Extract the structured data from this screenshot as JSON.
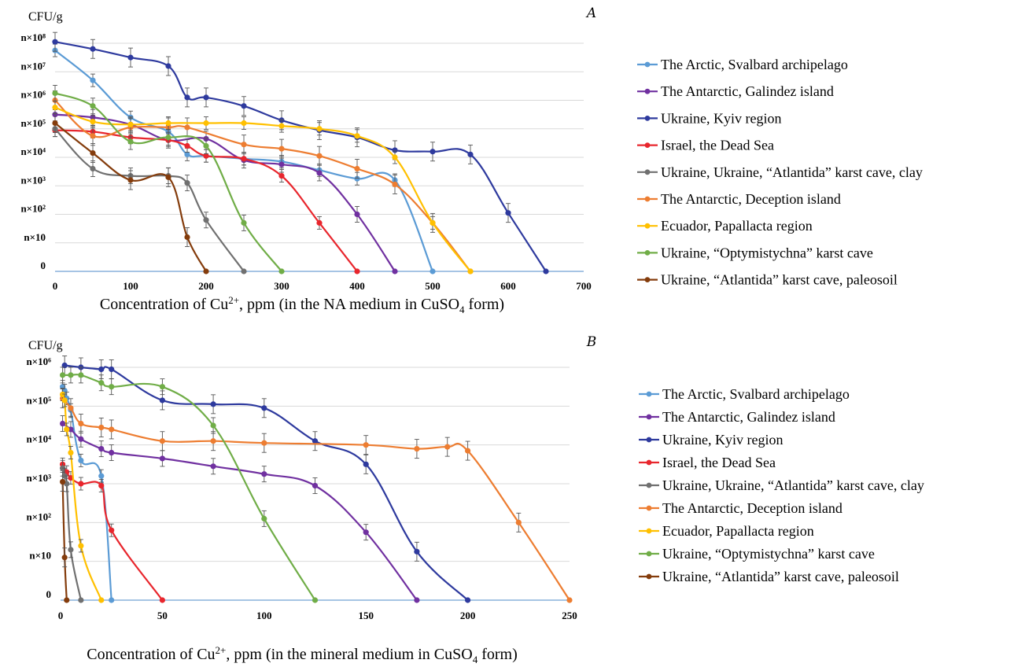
{
  "chart_data": [
    {
      "type": "line",
      "panel_label": "A",
      "y_unit": "CFU/g",
      "xlabel_prefix": "Concentration of Cu",
      "xlabel_sup": "2+",
      "xlabel_mid": ", ppm (in the NA medium in CuSO",
      "xlabel_sub": "4",
      "xlabel_suffix": " form)",
      "x_ticks": [
        0,
        100,
        200,
        300,
        400,
        500,
        600,
        700
      ],
      "xlim": [
        0,
        700
      ],
      "y_tick_labels": [
        "0",
        "n×10",
        "n×10²",
        "n×10³",
        "n×10⁴",
        "n×10⁵",
        "n×10⁶",
        "n×10⁷",
        "n×10⁸"
      ],
      "ylim": [
        0,
        8
      ],
      "y_scale": "log",
      "grid": true,
      "legend_position": "right",
      "series": [
        {
          "name": "The Arctic, Svalbard archipelago",
          "color": "#5b9bd5",
          "points": [
            [
              0,
              7.75
            ],
            [
              50,
              6.7
            ],
            [
              100,
              5.4
            ],
            [
              150,
              4.9
            ],
            [
              175,
              4.1
            ],
            [
              200,
              4.05
            ],
            [
              250,
              3.95
            ],
            [
              300,
              3.85
            ],
            [
              350,
              3.55
            ],
            [
              400,
              3.25
            ],
            [
              450,
              3.2
            ],
            [
              500,
              0
            ]
          ]
        },
        {
          "name": "The Antarctic, Galindez island",
          "color": "#7030a0",
          "points": [
            [
              0,
              5.5
            ],
            [
              50,
              5.4
            ],
            [
              100,
              5.15
            ],
            [
              150,
              4.6
            ],
            [
              200,
              4.65
            ],
            [
              250,
              3.9
            ],
            [
              300,
              3.75
            ],
            [
              350,
              3.45
            ],
            [
              400,
              2.0
            ],
            [
              450,
              0
            ]
          ]
        },
        {
          "name": "Ukraine, Kyiv region",
          "color": "#2e3a9e",
          "points": [
            [
              0,
              8.05
            ],
            [
              50,
              7.8
            ],
            [
              100,
              7.5
            ],
            [
              150,
              7.2
            ],
            [
              175,
              6.1
            ],
            [
              200,
              6.1
            ],
            [
              250,
              5.8
            ],
            [
              300,
              5.3
            ],
            [
              350,
              4.95
            ],
            [
              400,
              4.7
            ],
            [
              450,
              4.25
            ],
            [
              500,
              4.2
            ],
            [
              550,
              4.1
            ],
            [
              600,
              2.05
            ],
            [
              650,
              0
            ]
          ]
        },
        {
          "name": "Israel, the Dead Sea",
          "color": "#e8262d",
          "points": [
            [
              0,
              4.95
            ],
            [
              50,
              4.9
            ],
            [
              100,
              4.7
            ],
            [
              150,
              4.6
            ],
            [
              175,
              4.4
            ],
            [
              200,
              4.05
            ],
            [
              250,
              3.95
            ],
            [
              300,
              3.35
            ],
            [
              350,
              1.7
            ],
            [
              400,
              0
            ]
          ]
        },
        {
          "name": "Ukraine, Ukraine, “Atlantida” karst cave, clay",
          "color": "#707070",
          "points": [
            [
              0,
              5.0
            ],
            [
              50,
              3.6
            ],
            [
              100,
              3.35
            ],
            [
              150,
              3.35
            ],
            [
              175,
              3.1
            ],
            [
              200,
              1.8
            ],
            [
              250,
              0
            ]
          ]
        },
        {
          "name": "The Antarctic, Deception island",
          "color": "#ed7d31",
          "points": [
            [
              0,
              6.0
            ],
            [
              50,
              4.75
            ],
            [
              100,
              5.05
            ],
            [
              150,
              5.05
            ],
            [
              175,
              5.05
            ],
            [
              250,
              4.45
            ],
            [
              300,
              4.3
            ],
            [
              350,
              4.05
            ],
            [
              400,
              3.6
            ],
            [
              450,
              3.05
            ],
            [
              500,
              1.7
            ],
            [
              550,
              0
            ]
          ]
        },
        {
          "name": "Ecuador, Papallacta region",
          "color": "#ffc000",
          "points": [
            [
              0,
              5.75
            ],
            [
              50,
              5.25
            ],
            [
              100,
              5.15
            ],
            [
              150,
              5.2
            ],
            [
              200,
              5.2
            ],
            [
              250,
              5.2
            ],
            [
              300,
              5.1
            ],
            [
              350,
              5.0
            ],
            [
              400,
              4.75
            ],
            [
              450,
              4.0
            ],
            [
              500,
              1.7
            ],
            [
              550,
              0
            ]
          ]
        },
        {
          "name": "Ukraine, “Optymistychna” karst cave",
          "color": "#70ad47",
          "points": [
            [
              0,
              6.25
            ],
            [
              50,
              5.8
            ],
            [
              100,
              4.55
            ],
            [
              150,
              4.7
            ],
            [
              200,
              4.4
            ],
            [
              250,
              1.7
            ],
            [
              300,
              0
            ]
          ]
        },
        {
          "name": "Ukraine, “Atlantida” karst cave, paleosoil",
          "color": "#843c0c",
          "points": [
            [
              0,
              5.2
            ],
            [
              50,
              4.15
            ],
            [
              100,
              3.2
            ],
            [
              150,
              3.3
            ],
            [
              175,
              1.2
            ],
            [
              200,
              0
            ]
          ]
        }
      ]
    },
    {
      "type": "line",
      "panel_label": "B",
      "y_unit": "CFU/g",
      "xlabel_prefix": "Concentration of Cu",
      "xlabel_sup": "2+",
      "xlabel_mid": ", ppm (in the mineral medium in CuSO",
      "xlabel_sub": "4",
      "xlabel_suffix": " form)",
      "x_ticks": [
        0,
        50,
        100,
        150,
        200,
        250
      ],
      "xlim": [
        0,
        250
      ],
      "y_tick_labels": [
        "0",
        "n×10",
        "n×10²",
        "n×10³",
        "n×10⁴",
        "n×10⁵",
        "n×10⁶"
      ],
      "ylim": [
        0,
        6
      ],
      "y_scale": "log",
      "grid": true,
      "legend_position": "right",
      "series": [
        {
          "name": "The Arctic, Svalbard archipelago",
          "color": "#5b9bd5",
          "points": [
            [
              1,
              5.5
            ],
            [
              2,
              5.4
            ],
            [
              3,
              5.2
            ],
            [
              5,
              4.9
            ],
            [
              10,
              3.6
            ],
            [
              20,
              3.2
            ],
            [
              25,
              0
            ]
          ]
        },
        {
          "name": "The Antarctic, Galindez island",
          "color": "#7030a0",
          "points": [
            [
              1,
              4.55
            ],
            [
              5,
              4.4
            ],
            [
              10,
              4.15
            ],
            [
              20,
              3.9
            ],
            [
              25,
              3.8
            ],
            [
              50,
              3.65
            ],
            [
              75,
              3.45
            ],
            [
              100,
              3.25
            ],
            [
              125,
              2.95
            ],
            [
              150,
              1.75
            ],
            [
              175,
              0
            ]
          ]
        },
        {
          "name": "Ukraine, Kyiv region",
          "color": "#2e3a9e",
          "points": [
            [
              2,
              6.05
            ],
            [
              10,
              6.0
            ],
            [
              20,
              5.95
            ],
            [
              25,
              5.95
            ],
            [
              50,
              5.15
            ],
            [
              75,
              5.05
            ],
            [
              100,
              4.95
            ],
            [
              125,
              4.1
            ],
            [
              150,
              3.5
            ],
            [
              175,
              1.25
            ],
            [
              200,
              0
            ]
          ]
        },
        {
          "name": "Israel, the Dead Sea",
          "color": "#e8262d",
          "points": [
            [
              1,
              3.5
            ],
            [
              3,
              3.3
            ],
            [
              5,
              3.15
            ],
            [
              10,
              3.0
            ],
            [
              20,
              2.95
            ],
            [
              25,
              1.8
            ],
            [
              50,
              0
            ]
          ]
        },
        {
          "name": "Ukraine, Ukraine, “Atlantida” karst cave, clay",
          "color": "#707070",
          "points": [
            [
              1,
              3.4
            ],
            [
              2,
              3.2
            ],
            [
              3,
              3.0
            ],
            [
              5,
              1.3
            ],
            [
              10,
              0
            ]
          ]
        },
        {
          "name": "The Antarctic, Deception island",
          "color": "#ed7d31",
          "points": [
            [
              1,
              5.2
            ],
            [
              5,
              4.95
            ],
            [
              10,
              4.55
            ],
            [
              20,
              4.45
            ],
            [
              25,
              4.4
            ],
            [
              50,
              4.1
            ],
            [
              75,
              4.1
            ],
            [
              100,
              4.05
            ],
            [
              150,
              4.0
            ],
            [
              175,
              3.9
            ],
            [
              190,
              3.95
            ],
            [
              200,
              3.85
            ],
            [
              225,
              2.0
            ],
            [
              250,
              0
            ]
          ]
        },
        {
          "name": "Ecuador, Papallacta region",
          "color": "#ffc000",
          "points": [
            [
              1,
              5.3
            ],
            [
              2,
              5.15
            ],
            [
              3,
              4.4
            ],
            [
              5,
              3.8
            ],
            [
              10,
              1.4
            ],
            [
              20,
              0
            ]
          ]
        },
        {
          "name": "Ukraine, “Optymistychna” karst cave",
          "color": "#70ad47",
          "points": [
            [
              1,
              5.8
            ],
            [
              5,
              5.8
            ],
            [
              10,
              5.8
            ],
            [
              20,
              5.6
            ],
            [
              25,
              5.5
            ],
            [
              50,
              5.5
            ],
            [
              75,
              4.5
            ],
            [
              100,
              2.1
            ],
            [
              125,
              0
            ]
          ]
        },
        {
          "name": "Ukraine, “Atlantida” karst cave, paleosoil",
          "color": "#843c0c",
          "points": [
            [
              1,
              3.05
            ],
            [
              2,
              1.1
            ],
            [
              3,
              0
            ]
          ]
        }
      ]
    }
  ]
}
